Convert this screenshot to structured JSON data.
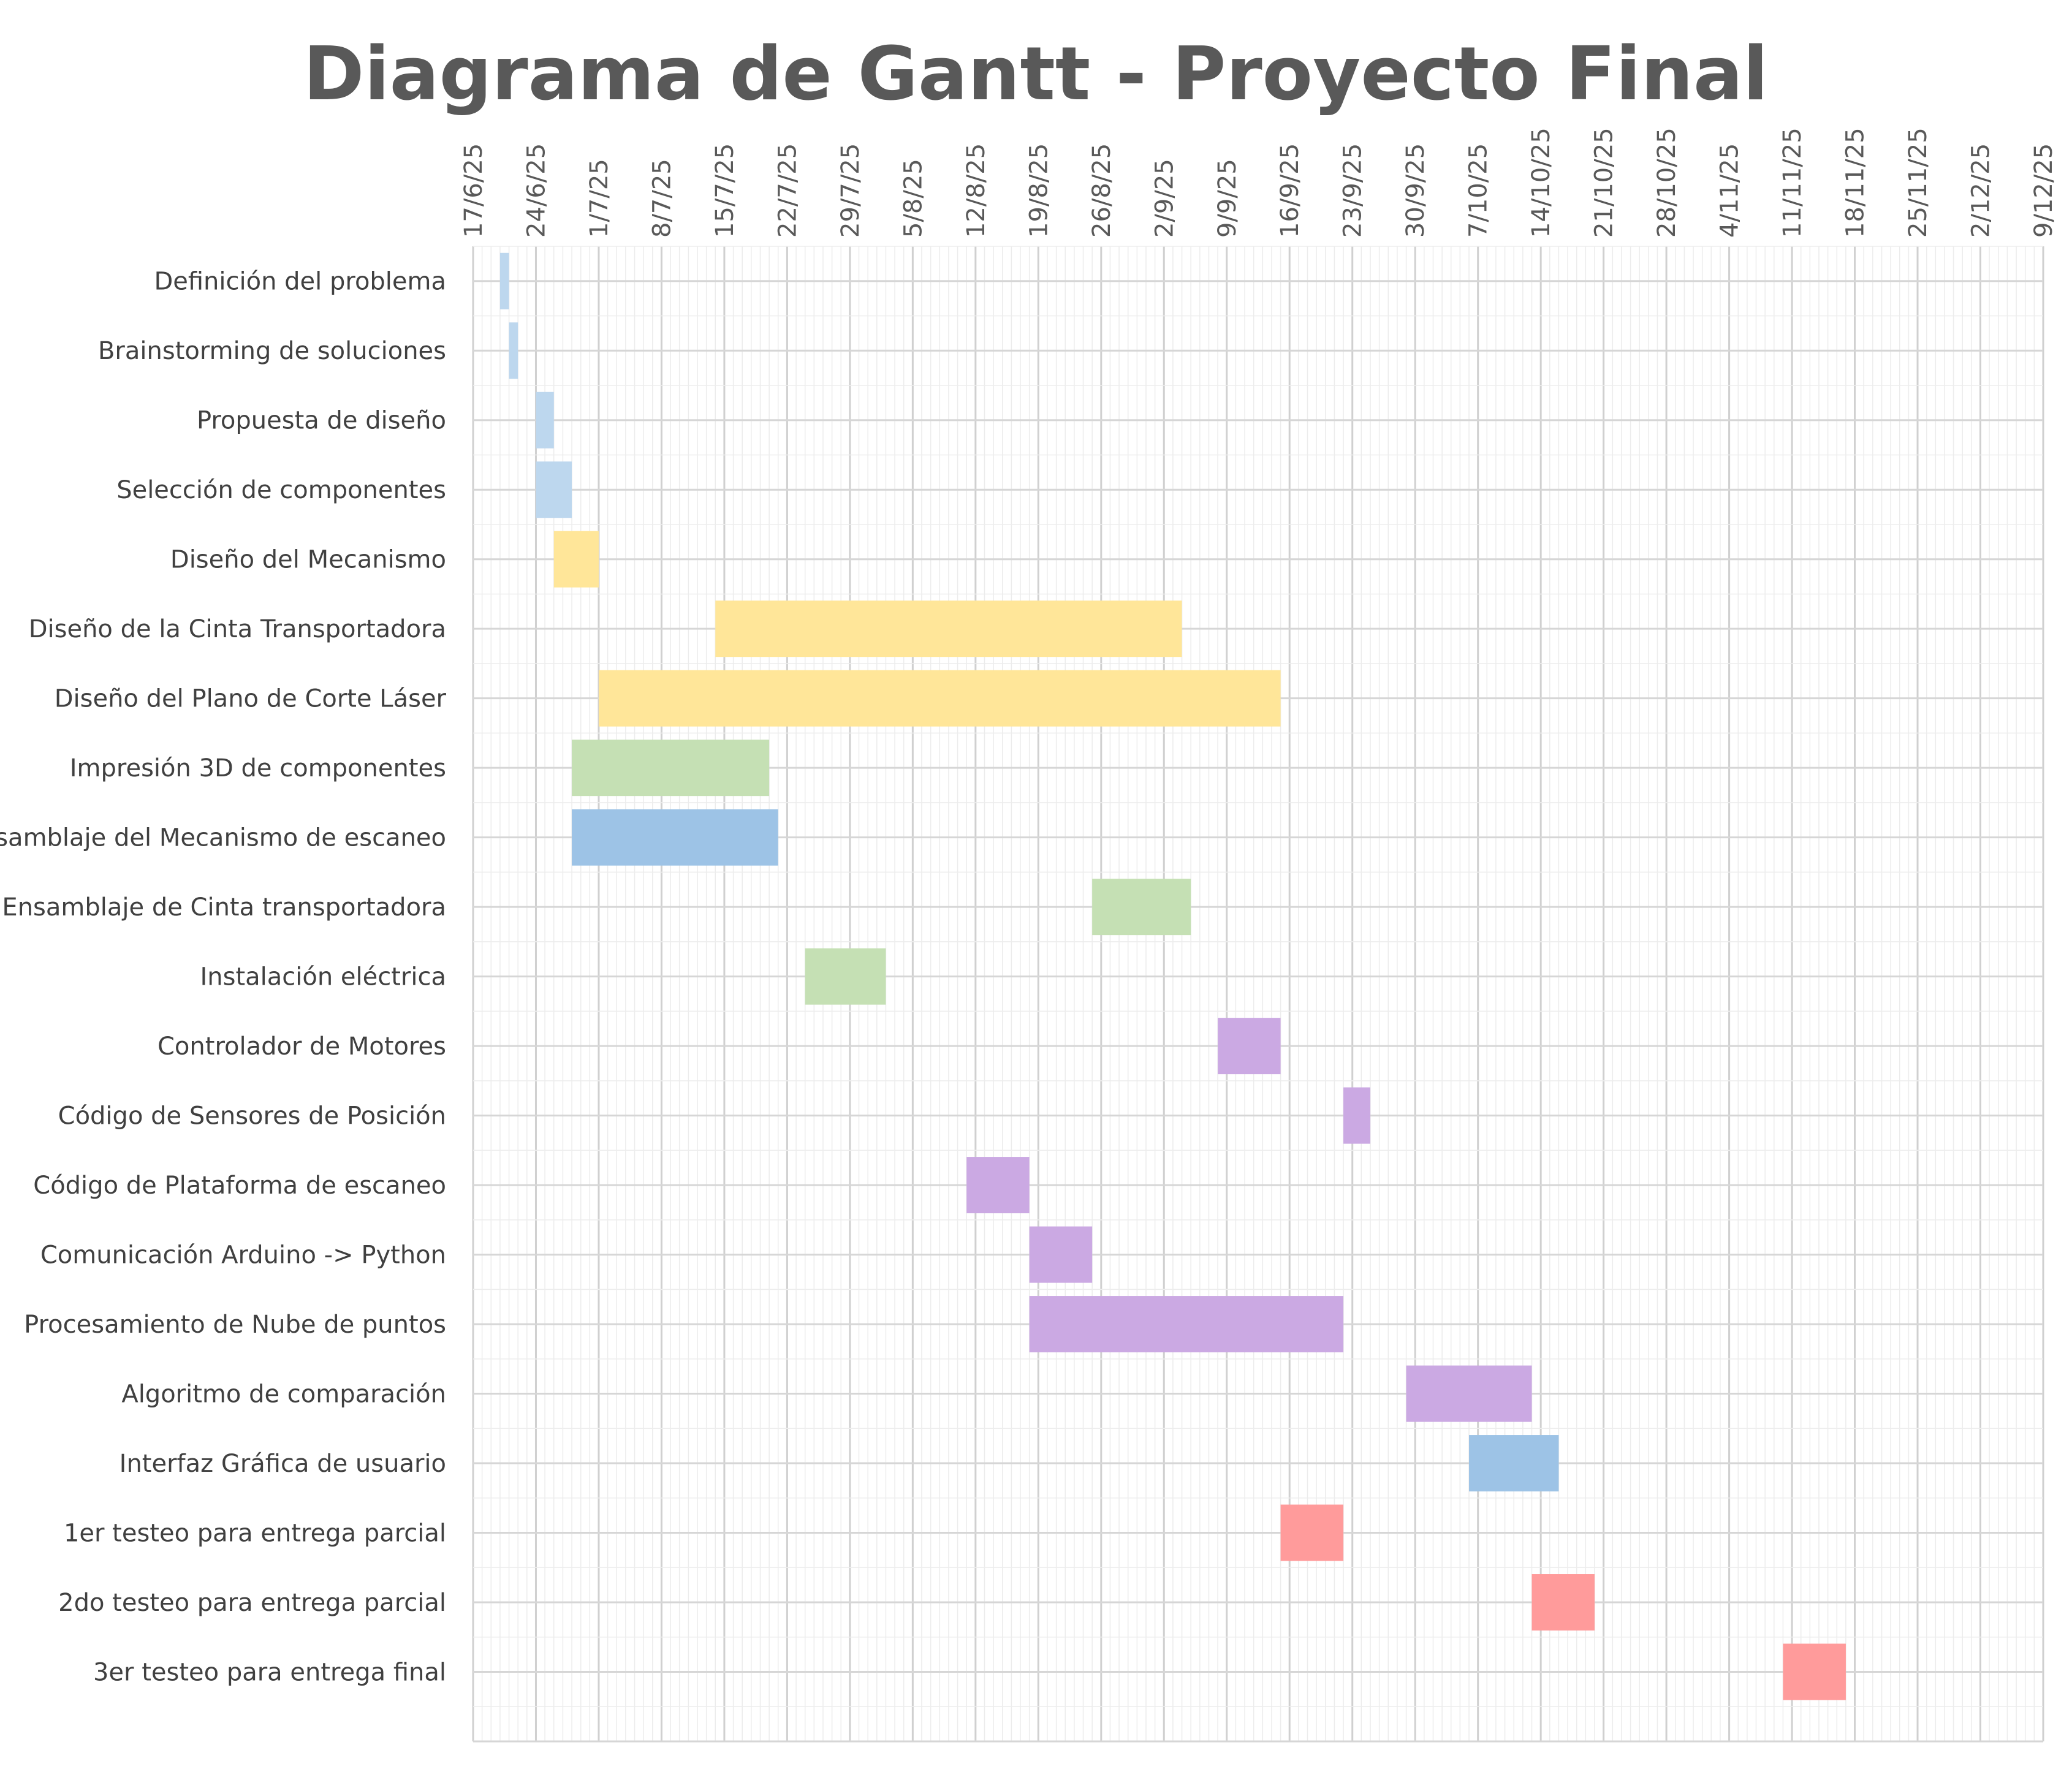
{
  "chart_data": {
    "type": "gantt",
    "title": "Diagrama de Gantt - Proyecto Final",
    "x_axis": {
      "type": "date",
      "range": [
        "2025-06-17",
        "2025-12-09"
      ],
      "tick_labels": [
        "17/6/25",
        "24/6/25",
        "1/7/25",
        "8/7/25",
        "15/7/25",
        "22/7/25",
        "29/7/25",
        "5/8/25",
        "12/8/25",
        "19/8/25",
        "26/8/25",
        "2/9/25",
        "9/9/25",
        "16/9/25",
        "23/9/25",
        "30/9/25",
        "7/10/25",
        "14/10/25",
        "21/10/25",
        "28/10/25",
        "4/11/25",
        "11/11/25",
        "18/11/25",
        "25/11/25",
        "2/12/25",
        "9/12/25"
      ],
      "position": "top",
      "minor_grid": "daily",
      "major_grid": "weekly"
    },
    "grid": true,
    "colors": {
      "light_blue": "#bdd7ee",
      "yellow": "#ffe699",
      "green": "#c5e0b4",
      "blue": "#9dc3e6",
      "purple": "#cba9e3",
      "red": "#ff9b9b"
    },
    "tasks": [
      {
        "name": "Definición del problema",
        "start": "2025-06-20",
        "end": "2025-06-21",
        "color": "#bdd7ee"
      },
      {
        "name": "Brainstorming de soluciones",
        "start": "2025-06-21",
        "end": "2025-06-22",
        "color": "#bdd7ee"
      },
      {
        "name": "Propuesta de diseño",
        "start": "2025-06-24",
        "end": "2025-06-26",
        "color": "#bdd7ee"
      },
      {
        "name": "Selección de componentes",
        "start": "2025-06-24",
        "end": "2025-06-28",
        "color": "#bdd7ee"
      },
      {
        "name": "Diseño del Mecanismo",
        "start": "2025-06-26",
        "end": "2025-07-01",
        "color": "#ffe699"
      },
      {
        "name": "Diseño de la Cinta Transportadora",
        "start": "2025-07-14",
        "end": "2025-09-04",
        "color": "#ffe699"
      },
      {
        "name": "Diseño del Plano de Corte Láser",
        "start": "2025-07-01",
        "end": "2025-09-15",
        "color": "#ffe699"
      },
      {
        "name": "Impresión 3D de componentes",
        "start": "2025-06-28",
        "end": "2025-07-20",
        "color": "#c5e0b4"
      },
      {
        "name": "Ensamblaje del Mecanismo de escaneo",
        "start": "2025-06-28",
        "end": "2025-07-21",
        "color": "#9dc3e6"
      },
      {
        "name": "Ensamblaje de Cinta transportadora",
        "start": "2025-08-25",
        "end": "2025-09-05",
        "color": "#c5e0b4"
      },
      {
        "name": "Instalación eléctrica",
        "start": "2025-07-24",
        "end": "2025-08-02",
        "color": "#c5e0b4"
      },
      {
        "name": "Controlador de Motores",
        "start": "2025-09-08",
        "end": "2025-09-15",
        "color": "#cba9e3"
      },
      {
        "name": "Código de Sensores de Posición",
        "start": "2025-09-22",
        "end": "2025-09-25",
        "color": "#cba9e3"
      },
      {
        "name": "Código de Plataforma de escaneo",
        "start": "2025-08-11",
        "end": "2025-08-18",
        "color": "#cba9e3"
      },
      {
        "name": "Comunicación Arduino -> Python",
        "start": "2025-08-18",
        "end": "2025-08-25",
        "color": "#cba9e3"
      },
      {
        "name": "Procesamiento de Nube de puntos",
        "start": "2025-08-18",
        "end": "2025-09-22",
        "color": "#cba9e3"
      },
      {
        "name": "Algoritmo de comparación",
        "start": "2025-09-29",
        "end": "2025-10-13",
        "color": "#cba9e3"
      },
      {
        "name": "Interfaz Gráfica de usuario",
        "start": "2025-10-06",
        "end": "2025-10-16",
        "color": "#9dc3e6"
      },
      {
        "name": "1er testeo para entrega parcial",
        "start": "2025-09-15",
        "end": "2025-09-22",
        "color": "#ff9b9b"
      },
      {
        "name": "2do testeo para entrega parcial",
        "start": "2025-10-13",
        "end": "2025-10-20",
        "color": "#ff9b9b"
      },
      {
        "name": "3er testeo para entrega final",
        "start": "2025-11-10",
        "end": "2025-11-17",
        "color": "#ff9b9b"
      }
    ]
  }
}
